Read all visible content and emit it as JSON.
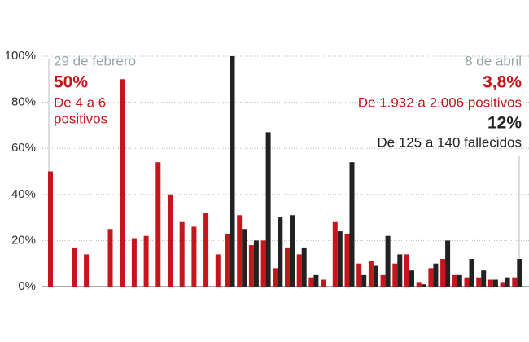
{
  "chart_data": {
    "type": "bar",
    "categories": [
      null,
      null,
      null,
      null,
      null,
      null,
      null,
      null,
      null,
      null,
      null,
      null,
      null,
      null,
      null,
      null,
      null,
      null,
      null,
      null,
      null,
      null,
      null,
      null,
      null,
      null,
      null,
      null,
      null,
      null,
      null,
      null,
      null,
      null,
      null,
      null,
      null,
      null,
      null,
      null
    ],
    "series": [
      {
        "color": "#c4161c",
        "values": [
          50,
          0,
          17,
          14,
          0,
          25,
          90,
          21,
          22,
          54,
          40,
          28,
          26,
          32,
          14,
          23,
          31,
          18,
          20,
          8,
          17,
          14,
          4,
          3,
          28,
          23,
          10,
          11,
          5,
          10,
          14,
          2,
          8,
          12,
          5,
          4,
          4,
          3,
          2,
          4
        ]
      },
      {
        "color": "#222222",
        "values": [
          null,
          null,
          null,
          null,
          null,
          null,
          null,
          null,
          null,
          null,
          null,
          null,
          null,
          null,
          null,
          100,
          25,
          20,
          67,
          30,
          31,
          17,
          5,
          0,
          24,
          54,
          5,
          9,
          22,
          14,
          7,
          1,
          10,
          20,
          5,
          12,
          7,
          3,
          4,
          12
        ]
      }
    ],
    "ylim": [
      0,
      100
    ],
    "yticks": [
      {
        "value": 0,
        "label": "0%"
      },
      {
        "value": 20,
        "label": "20%"
      },
      {
        "value": 40,
        "label": "40%"
      },
      {
        "value": 60,
        "label": "60%"
      },
      {
        "value": 80,
        "label": "80%"
      },
      {
        "value": 100,
        "label": "100%"
      }
    ],
    "grid": true,
    "annotations": {
      "left": {
        "date": "29 de febrero",
        "pct": "50%",
        "lines": [
          "De 4 a 6",
          "positivos"
        ]
      },
      "right": {
        "date": "8 de abril",
        "pct": "3,8%",
        "text": "De 1.932 a 2.006 positivos",
        "pct2": "12%",
        "text2": "De 125 a 140 fallecidos"
      }
    }
  }
}
